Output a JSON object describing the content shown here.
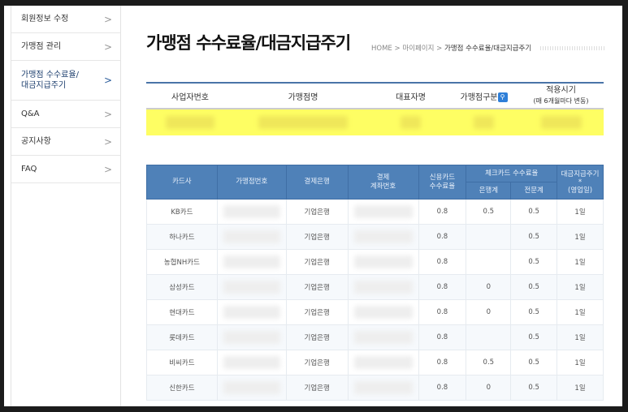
{
  "sidebar": {
    "items": [
      {
        "label": "회원정보 수정",
        "active": false
      },
      {
        "label": "가맹점 관리",
        "active": false
      },
      {
        "label": "가맹점 수수료율/\n대금지급주기",
        "active": true
      },
      {
        "label": "Q&A",
        "active": false
      },
      {
        "label": "공지사항",
        "active": false
      },
      {
        "label": "FAQ",
        "active": false
      }
    ]
  },
  "page": {
    "title": "가맹점 수수료율/대금지급주기"
  },
  "breadcrumb": {
    "home": "HOME",
    "mypage": "마이페이지",
    "current": "가맹점 수수료율/대금지급주기",
    "sep": ">"
  },
  "merchant_table": {
    "headers": [
      "사업자번호",
      "가맹점명",
      "대표자명",
      "가맹점구분",
      "적용시기"
    ],
    "period_note": "(매 6개월마다 변동)",
    "highlight_color": "#fefe63"
  },
  "rates_table": {
    "headers": {
      "card": "카드사",
      "merchant_no": "가맹점번호",
      "bank": "결제은행",
      "account": "결제\n계좌번호",
      "credit": "신용카드\n수수료율",
      "check": "체크카드 수수료율",
      "check_bank": "은행계",
      "check_spec": "전문계",
      "cycle": "대금지급주기\n*\n(영업일)"
    },
    "rows": [
      {
        "card": "KB카드",
        "bank": "기업은행",
        "credit": "0.8",
        "check_bank": "0.5",
        "check_spec": "0.5",
        "cycle": "1일"
      },
      {
        "card": "하나카드",
        "bank": "기업은행",
        "credit": "0.8",
        "check_bank": "",
        "check_spec": "0.5",
        "cycle": "1일"
      },
      {
        "card": "농협NH카드",
        "bank": "기업은행",
        "credit": "0.8",
        "check_bank": "",
        "check_spec": "0.5",
        "cycle": "1일"
      },
      {
        "card": "삼성카드",
        "bank": "기업은행",
        "credit": "0.8",
        "check_bank": "0",
        "check_spec": "0.5",
        "cycle": "1일"
      },
      {
        "card": "현대카드",
        "bank": "기업은행",
        "credit": "0.8",
        "check_bank": "0",
        "check_spec": "0.5",
        "cycle": "1일"
      },
      {
        "card": "롯데카드",
        "bank": "기업은행",
        "credit": "0.8",
        "check_bank": "",
        "check_spec": "0.5",
        "cycle": "1일"
      },
      {
        "card": "비씨카드",
        "bank": "기업은행",
        "credit": "0.8",
        "check_bank": "0.5",
        "check_spec": "0.5",
        "cycle": "1일"
      },
      {
        "card": "신한카드",
        "bank": "기업은행",
        "credit": "0.8",
        "check_bank": "0",
        "check_spec": "0.5",
        "cycle": "1일"
      }
    ],
    "header_color": "#4f81b8"
  }
}
